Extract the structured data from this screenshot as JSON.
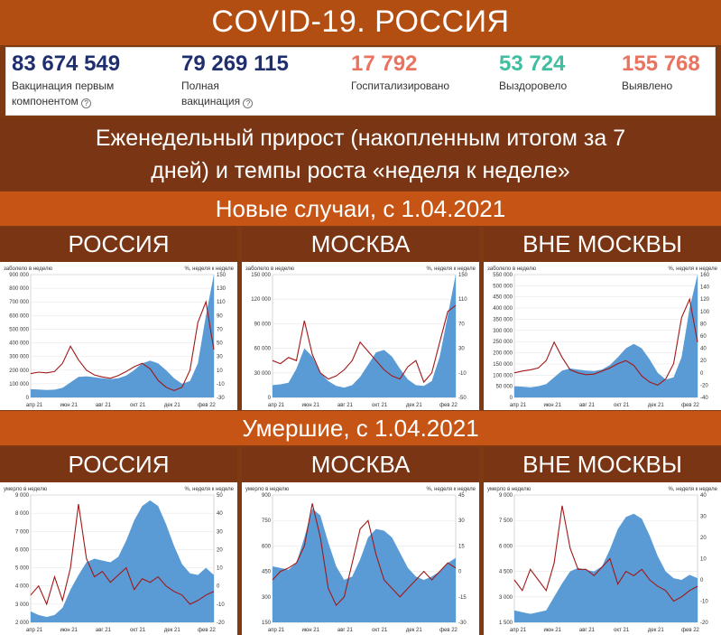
{
  "title": "COVID-19. РОССИЯ",
  "stats": [
    {
      "value": "83 674 549",
      "label1": "Вакцинация первым",
      "label2": "компонентом",
      "info": "?",
      "color": "#1f2f6e"
    },
    {
      "value": "79 269 115",
      "label1": "Полная",
      "label2": "вакцинация",
      "info": "?",
      "color": "#1f2f6e"
    },
    {
      "value": "17 792",
      "label1": "Госпитализировано",
      "label2": "",
      "info": "",
      "color": "#e9735f"
    },
    {
      "value": "53 724",
      "label1": "Выздоровело",
      "label2": "",
      "info": "",
      "color": "#3fbfa0"
    },
    {
      "value": "155 768",
      "label1": "Выявлено",
      "label2": "",
      "info": "",
      "color": "#e9735f"
    }
  ],
  "subtitle_line1": "Еженедельный прирост (накопленным итогом за 7",
  "subtitle_line2": "дней) и темпы роста «неделя к неделе»",
  "section_cases": "Новые случаи, с 1.04.2021",
  "section_deaths": "Умершие, с 1.04.2021",
  "region_headers": [
    "РОССИЯ",
    "МОСКВА",
    "ВНЕ МОСКВЫ"
  ],
  "colors": {
    "area": "#5b9bd5",
    "line": "#a01818"
  },
  "chart_data": [
    {
      "type": "area",
      "group": "cases",
      "region": "РОССИЯ",
      "left_caption": "заболело в неделю",
      "right_caption": "%, неделя к неделе",
      "left_ticks": [
        "900 000",
        "800 000",
        "700 000",
        "600 000",
        "500 000",
        "400 000",
        "300 000",
        "200 000",
        "100 000",
        "0"
      ],
      "right_ticks": [
        "150",
        "130",
        "110",
        "90",
        "70",
        "50",
        "30",
        "10",
        "-10",
        "-30"
      ],
      "x_ticks": [
        "апр 21",
        "июн 21",
        "авг 21",
        "окт 21",
        "дек 21",
        "фев 22"
      ],
      "ylim": [
        0,
        900000
      ],
      "y2lim": [
        -30,
        150
      ],
      "series": [
        {
          "values": [
            60000,
            58000,
            55000,
            57000,
            70000,
            110000,
            150000,
            155000,
            148000,
            140000,
            135000,
            140000,
            160000,
            200000,
            250000,
            270000,
            250000,
            200000,
            140000,
            100000,
            120000,
            250000,
            600000,
            900000
          ]
        },
        {
          "values": [
            5,
            7,
            6,
            8,
            20,
            45,
            25,
            10,
            3,
            0,
            -2,
            2,
            8,
            15,
            20,
            12,
            -5,
            -15,
            -20,
            -15,
            10,
            80,
            110,
            40
          ]
        }
      ]
    },
    {
      "type": "area",
      "group": "cases",
      "region": "МОСКВА",
      "left_caption": "заболело в неделю",
      "right_caption": "%, неделя к неделе",
      "left_ticks": [
        "150 000",
        "120 000",
        "90 000",
        "60 000",
        "30 000",
        "0"
      ],
      "right_ticks": [
        "150",
        "110",
        "70",
        "30",
        "-10",
        "-50"
      ],
      "x_ticks": [
        "апр 21",
        "июн 21",
        "авг 21",
        "окт 21",
        "дек 21",
        "фев 22"
      ],
      "ylim": [
        0,
        150000
      ],
      "y2lim": [
        -50,
        150
      ],
      "series": [
        {
          "values": [
            15000,
            16000,
            18000,
            35000,
            60000,
            50000,
            30000,
            20000,
            14000,
            12000,
            15000,
            25000,
            40000,
            55000,
            58000,
            50000,
            35000,
            22000,
            15000,
            14000,
            20000,
            50000,
            100000,
            150000
          ]
        },
        {
          "values": [
            10,
            5,
            15,
            10,
            75,
            20,
            -10,
            -20,
            -15,
            -5,
            10,
            40,
            25,
            10,
            -5,
            -15,
            -20,
            0,
            10,
            -25,
            -10,
            40,
            90,
            100
          ]
        }
      ]
    },
    {
      "type": "area",
      "group": "cases",
      "region": "ВНЕ МОСКВЫ",
      "left_caption": "заболело в неделю",
      "right_caption": "%, неделя к неделе",
      "left_ticks": [
        "550 000",
        "500 000",
        "450 000",
        "400 000",
        "350 000",
        "300 000",
        "250 000",
        "200 000",
        "150 000",
        "100 000",
        "50 000",
        "0"
      ],
      "right_ticks": [
        "160",
        "140",
        "120",
        "100",
        "80",
        "60",
        "40",
        "20",
        "0",
        "-20",
        "-40"
      ],
      "x_ticks": [
        "апр 21",
        "июн 21",
        "авг 21",
        "окт 21",
        "дек 21",
        "фев 22"
      ],
      "ylim": [
        0,
        550000
      ],
      "y2lim": [
        -40,
        160
      ],
      "series": [
        {
          "values": [
            50000,
            48000,
            45000,
            50000,
            60000,
            90000,
            120000,
            130000,
            125000,
            120000,
            118000,
            125000,
            145000,
            180000,
            220000,
            240000,
            220000,
            170000,
            110000,
            80000,
            90000,
            180000,
            400000,
            550000
          ]
        },
        {
          "values": [
            0,
            3,
            5,
            8,
            20,
            50,
            25,
            5,
            0,
            -3,
            -2,
            3,
            8,
            15,
            20,
            12,
            -5,
            -15,
            -20,
            -10,
            15,
            90,
            120,
            50
          ]
        }
      ]
    },
    {
      "type": "area",
      "group": "deaths",
      "region": "РОССИЯ",
      "left_caption": "умерло в неделю",
      "right_caption": "%, неделя к неделе",
      "left_ticks": [
        "9 000",
        "8 000",
        "7 000",
        "6 000",
        "5 000",
        "4 000",
        "3 000",
        "2 000"
      ],
      "right_ticks": [
        "50",
        "40",
        "30",
        "20",
        "10",
        "0",
        "-10",
        "-20"
      ],
      "x_ticks": [
        "апр 21",
        "июн 21",
        "авг 21",
        "окт 21",
        "дек 21",
        "фев 22"
      ],
      "ylim": [
        2000,
        9000
      ],
      "y2lim": [
        -20,
        50
      ],
      "series": [
        {
          "values": [
            2600,
            2400,
            2300,
            2400,
            2800,
            3800,
            4600,
            5300,
            5500,
            5400,
            5300,
            5600,
            6500,
            7600,
            8400,
            8700,
            8400,
            7400,
            6200,
            5200,
            4700,
            4600,
            5000,
            4600
          ]
        },
        {
          "values": [
            -5,
            0,
            -10,
            5,
            -8,
            10,
            45,
            15,
            5,
            8,
            2,
            6,
            10,
            -2,
            4,
            2,
            5,
            0,
            -3,
            -5,
            -10,
            -8,
            -5,
            -3
          ]
        }
      ]
    },
    {
      "type": "area",
      "group": "deaths",
      "region": "МОСКВА",
      "left_caption": "умерло в неделю",
      "right_caption": "%, неделя к неделе",
      "left_ticks": [
        "900",
        "750",
        "600",
        "450",
        "300",
        "150"
      ],
      "right_ticks": [
        "45",
        "30",
        "15",
        "0",
        "-15",
        "-30"
      ],
      "x_ticks": [
        "апр 21",
        "июн 21",
        "авг 21",
        "окт 21",
        "дек 21",
        "фев 22"
      ],
      "ylim": [
        150,
        900
      ],
      "y2lim": [
        -30,
        45
      ],
      "series": [
        {
          "values": [
            480,
            470,
            460,
            500,
            650,
            820,
            780,
            620,
            480,
            400,
            420,
            520,
            650,
            700,
            690,
            650,
            560,
            470,
            420,
            400,
            420,
            450,
            500,
            530
          ]
        },
        {
          "values": [
            -5,
            0,
            2,
            5,
            15,
            40,
            20,
            -10,
            -20,
            -15,
            5,
            25,
            30,
            10,
            -5,
            -10,
            -15,
            -10,
            -5,
            0,
            -5,
            0,
            5,
            2
          ]
        }
      ]
    },
    {
      "type": "area",
      "group": "deaths",
      "region": "ВНЕ МОСКВЫ",
      "left_caption": "умерло в неделю",
      "right_caption": "%, неделя к неделе",
      "left_ticks": [
        "9 000",
        "7 500",
        "6 000",
        "4 500",
        "3 000",
        "1 500"
      ],
      "right_ticks": [
        "40",
        "30",
        "20",
        "10",
        "0",
        "-10",
        "-20"
      ],
      "x_ticks": [
        "апр 21",
        "июн 21",
        "авг 21",
        "окт 21",
        "дек 21",
        "фев 22"
      ],
      "ylim": [
        1500,
        9000
      ],
      "y2lim": [
        -20,
        40
      ],
      "series": [
        {
          "values": [
            2200,
            2100,
            2000,
            2100,
            2200,
            3000,
            3800,
            4500,
            4700,
            4600,
            4500,
            4800,
            5800,
            7000,
            7700,
            7900,
            7600,
            6600,
            5400,
            4500,
            4100,
            4000,
            4300,
            4100
          ]
        },
        {
          "values": [
            0,
            -5,
            5,
            0,
            -5,
            8,
            35,
            15,
            5,
            5,
            2,
            6,
            10,
            -2,
            4,
            2,
            5,
            0,
            -3,
            -5,
            -10,
            -8,
            -5,
            -3
          ]
        }
      ]
    }
  ]
}
